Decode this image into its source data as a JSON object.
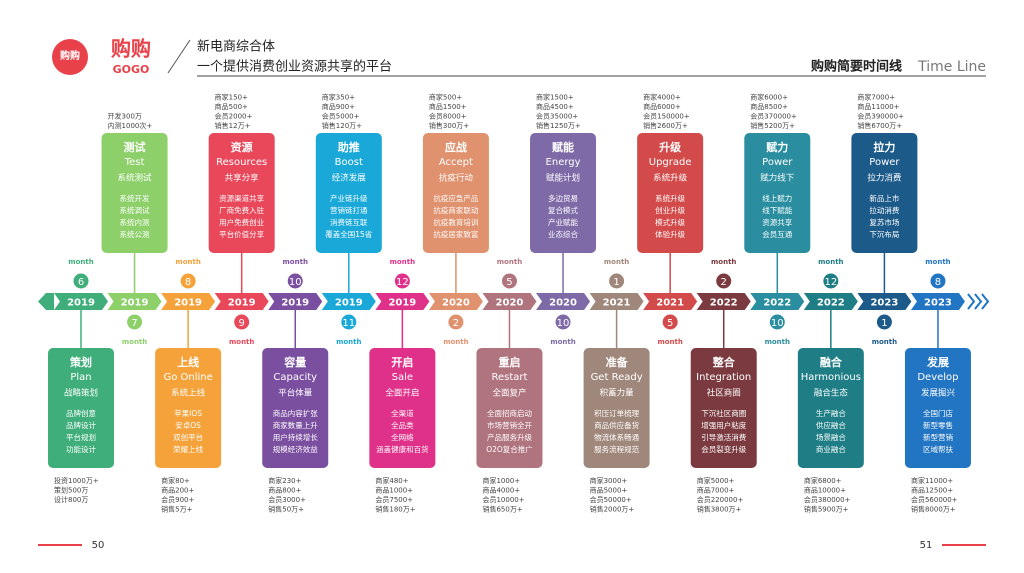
{
  "header": {
    "logo_cn": "购购",
    "logo_en": "GOGO",
    "tagline_1": "新电商综合体",
    "tagline_2": "一个提供消费创业资源共享的平台",
    "timeline_cn": "购购简要时间线",
    "timeline_en": "Time Line"
  },
  "month_label": "month",
  "milestones": [
    {
      "month": 6,
      "year": 2019,
      "position": "bottom",
      "color": "#3fae7a",
      "title": "策划",
      "title_en": "Plan",
      "theme": "战略策划",
      "items": [
        "品牌创意",
        "品牌设计",
        "平台规划",
        "功能设计"
      ],
      "stats": [
        "投资1000万+",
        "策划500万",
        "设计800万"
      ]
    },
    {
      "month": 7,
      "year": 2019,
      "position": "top",
      "color": "#8dd06a",
      "title": "测试",
      "title_en": "Test",
      "theme": "系统测试",
      "items": [
        "系统开发",
        "系统调试",
        "系统内测",
        "系统公测"
      ],
      "stats": [
        "开发300万",
        "内测1000次+"
      ]
    },
    {
      "month": 8,
      "year": 2019,
      "position": "bottom",
      "color": "#f5a23a",
      "title": "上线",
      "title_en": "Go Online",
      "theme": "系统上线",
      "items": [
        "苹果IOS",
        "安卓OS",
        "双创平台",
        "荣耀上线"
      ],
      "stats": [
        "商家80+",
        "商品200+",
        "会员900+",
        "销售5万+"
      ]
    },
    {
      "month": 9,
      "year": 2019,
      "position": "top",
      "color": "#e8485a",
      "title": "资源",
      "title_en": "Resources",
      "theme": "共享分享",
      "items": [
        "资源渠道共享",
        "厂商免费入驻",
        "用户免费创业",
        "平台价值分享"
      ],
      "stats": [
        "商家150+",
        "商品500+",
        "会员2000+",
        "销售12万+"
      ]
    },
    {
      "month": 10,
      "year": 2019,
      "position": "bottom",
      "color": "#7b4fa0",
      "title": "容量",
      "title_en": "Capacity",
      "theme": "平台体量",
      "items": [
        "商品内容扩张",
        "商家数量上升",
        "用户持续增长",
        "规模经济效益"
      ],
      "stats": [
        "商家230+",
        "商品800+",
        "会员3000+",
        "销售50万+"
      ]
    },
    {
      "month": 11,
      "year": 2019,
      "position": "top",
      "color": "#1aa8d8",
      "title": "助推",
      "title_en": "Boost",
      "theme": "经济发展",
      "items": [
        "产业链升级",
        "营销链打通",
        "消费链互联",
        "覆盖全国15省"
      ],
      "stats": [
        "商家350+",
        "商品900+",
        "会员5000+",
        "销售120万+"
      ]
    },
    {
      "month": 12,
      "year": 2019,
      "position": "bottom",
      "color": "#e0318a",
      "title": "开启",
      "title_en": "Sale",
      "theme": "全面开启",
      "items": [
        "全渠道",
        "全品类",
        "全网络",
        "涵盖健康和百货"
      ],
      "stats": [
        "商家480+",
        "商品1000+",
        "会员7500+",
        "销售180万+"
      ]
    },
    {
      "month": 2,
      "year": 2020,
      "position": "top",
      "color": "#e0916e",
      "title": "应战",
      "title_en": "Accept",
      "theme": "抗疫行动",
      "items": [
        "抗疫应急产品",
        "抗疫商家联动",
        "抗疫教育培训",
        "抗疫居家致富"
      ],
      "stats": [
        "商家500+",
        "商品1500+",
        "会员8000+",
        "销售300万+"
      ]
    },
    {
      "month": 5,
      "year": 2020,
      "position": "bottom",
      "color": "#b0747f",
      "title": "重启",
      "title_en": "Restart",
      "theme": "全面复产",
      "items": [
        "全面招商启动",
        "市场营销全开",
        "产品服务升级",
        "O2O复合推广"
      ],
      "stats": [
        "商家1000+",
        "商品4000+",
        "会员10000+",
        "销售650万+"
      ]
    },
    {
      "month": 10,
      "year": 2020,
      "position": "top",
      "color": "#7e6aa7",
      "title": "赋能",
      "title_en": "Energy",
      "theme": "赋能计划",
      "items": [
        "多边贸易",
        "复合模式",
        "产业赋能",
        "业态综合"
      ],
      "stats": [
        "商家1500+",
        "商品4500+",
        "会员35000+",
        "销售1250万+"
      ]
    },
    {
      "month": 1,
      "year": 2021,
      "position": "bottom",
      "color": "#a0877b",
      "title": "准备",
      "title_en": "Get Ready",
      "theme": "积蓄力量",
      "items": [
        "积压订单梳理",
        "商品供应备货",
        "物流体系畅通",
        "服务流程规范"
      ],
      "stats": [
        "商家3000+",
        "商品5000+",
        "会员50000+",
        "销售2000万+"
      ]
    },
    {
      "month": 5,
      "year": 2021,
      "position": "top",
      "color": "#d24a4a",
      "title": "升级",
      "title_en": "Upgrade",
      "theme": "系统升级",
      "items": [
        "系统升级",
        "创业升级",
        "模式升级",
        "体验升级"
      ],
      "stats": [
        "商家4000+",
        "商品6000+",
        "会员150000+",
        "销售2600万+"
      ]
    },
    {
      "month": 2,
      "year": 2022,
      "position": "bottom",
      "color": "#7a3a3f",
      "title": "整合",
      "title_en": "Integration",
      "theme": "社区商圈",
      "items": [
        "下沉社区商圈",
        "增强用户粘度",
        "引导激活消费",
        "会员裂变升级"
      ],
      "stats": [
        "商家5000+",
        "商品7000+",
        "会员220000+",
        "销售3800万+"
      ]
    },
    {
      "month": 10,
      "year": 2022,
      "position": "top",
      "color": "#2a8ea0",
      "title": "赋力",
      "title_en": "Power",
      "theme": "赋力线下",
      "items": [
        "线上赋力",
        "线下赋能",
        "资源共享",
        "会员互通"
      ],
      "stats": [
        "商家6000+",
        "商品8500+",
        "会员370000+",
        "销售5200万+"
      ]
    },
    {
      "month": 12,
      "year": 2022,
      "position": "bottom",
      "color": "#1e7d85",
      "title": "融合",
      "title_en": "Harmonious",
      "theme": "融合生态",
      "items": [
        "生产融合",
        "供应融合",
        "场景融合",
        "商业融合"
      ],
      "stats": [
        "商家6800+",
        "商品10000+",
        "会员380000+",
        "销售5900万+"
      ]
    },
    {
      "month": 1,
      "year": 2023,
      "position": "top",
      "color": "#1c5a8a",
      "title": "拉力",
      "title_en": "Power",
      "theme": "拉力消费",
      "items": [
        "新品上市",
        "拉动消费",
        "复苏市场",
        "下沉布局"
      ],
      "stats": [
        "商家7000+",
        "商品11000+",
        "会员390000+",
        "销售6700万+"
      ]
    },
    {
      "month": 8,
      "year": 2023,
      "position": "bottom",
      "color": "#2275c2",
      "title": "发展",
      "title_en": "Develop",
      "theme": "发展掘兴",
      "items": [
        "全国门店",
        "新型零售",
        "新型营销",
        "区域帮扶"
      ],
      "stats": [
        "商家11000+",
        "商品12500+",
        "会员560000+",
        "销售8000万+"
      ]
    }
  ],
  "footer": {
    "page_left": "50",
    "page_right": "51"
  }
}
